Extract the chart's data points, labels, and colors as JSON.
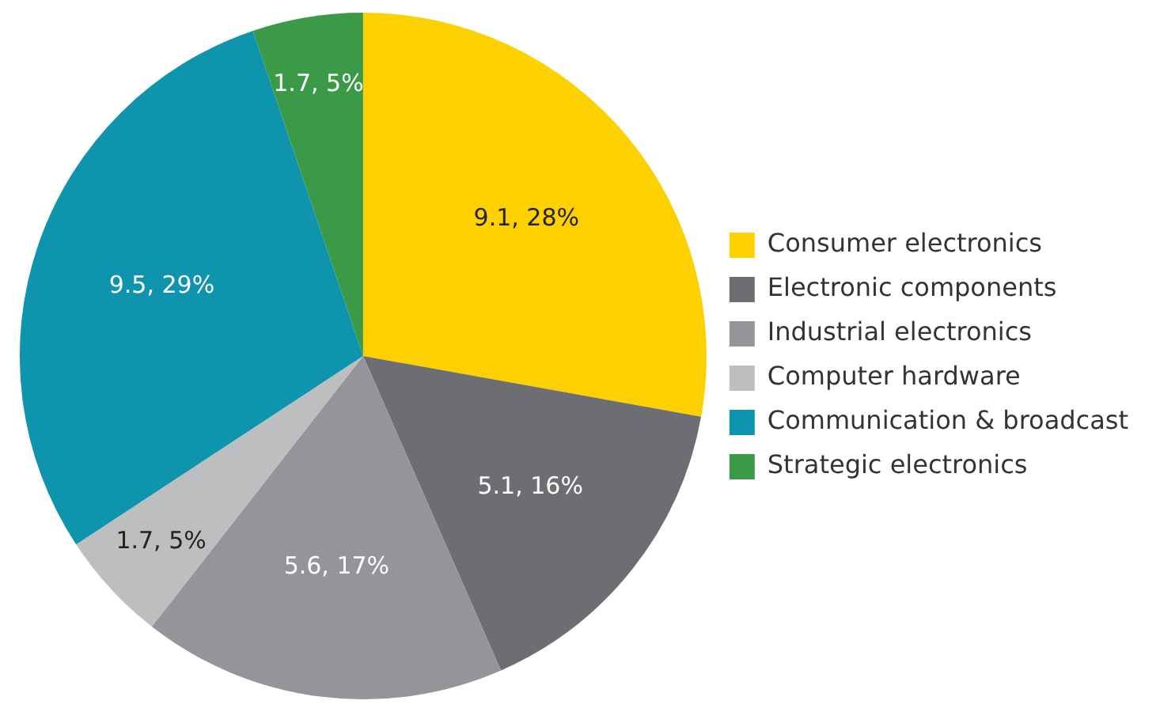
{
  "chart_data": {
    "type": "pie",
    "categories": [
      "Consumer electronics",
      "Electronic components",
      "Industrial electronics",
      "Computer hardware",
      "Communication & broadcast",
      "Strategic electronics"
    ],
    "values": [
      9.1,
      5.1,
      5.6,
      1.7,
      9.5,
      1.7
    ],
    "value_labels": [
      "9.1, 28%",
      "5.1, 16%",
      "5.6, 17%",
      "1.7, 5%",
      "9.5, 29%",
      "1.7, 5%"
    ],
    "colors": [
      "#fdd000",
      "#6d6e71",
      "#939598",
      "#bcbec0",
      "#0f94ae",
      "#3a9a48"
    ],
    "legend": "right"
  }
}
